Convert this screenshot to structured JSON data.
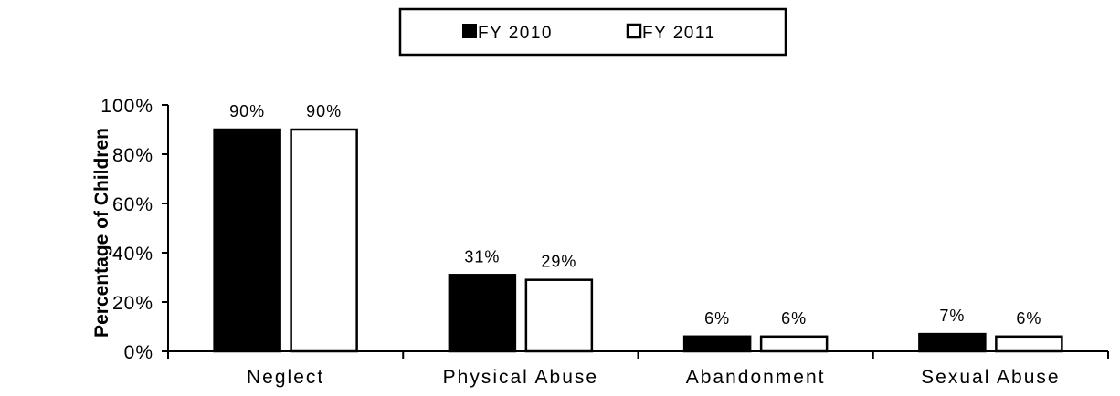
{
  "chart_data": {
    "type": "bar",
    "title": "",
    "xlabel": "",
    "ylabel": "Percentage of Children",
    "categories": [
      "Neglect",
      "Physical Abuse",
      "Abandonment",
      "Sexual Abuse"
    ],
    "series": [
      {
        "name": "FY 2010",
        "values": [
          90,
          31,
          6,
          7
        ],
        "labels": [
          "90%",
          "31%",
          "6%",
          "7%"
        ],
        "color": "#000000"
      },
      {
        "name": "FY 2011",
        "values": [
          90,
          29,
          6,
          6
        ],
        "labels": [
          "90%",
          "29%",
          "6%",
          "6%"
        ],
        "color": "#ffffff"
      }
    ],
    "ylim": [
      0,
      100
    ],
    "yticks": [
      0,
      20,
      40,
      60,
      80,
      100
    ],
    "ytick_labels": [
      "0%",
      "20%",
      "40%",
      "60%",
      "80%",
      "100%"
    ],
    "grid": false,
    "legend_position": "top-center"
  }
}
